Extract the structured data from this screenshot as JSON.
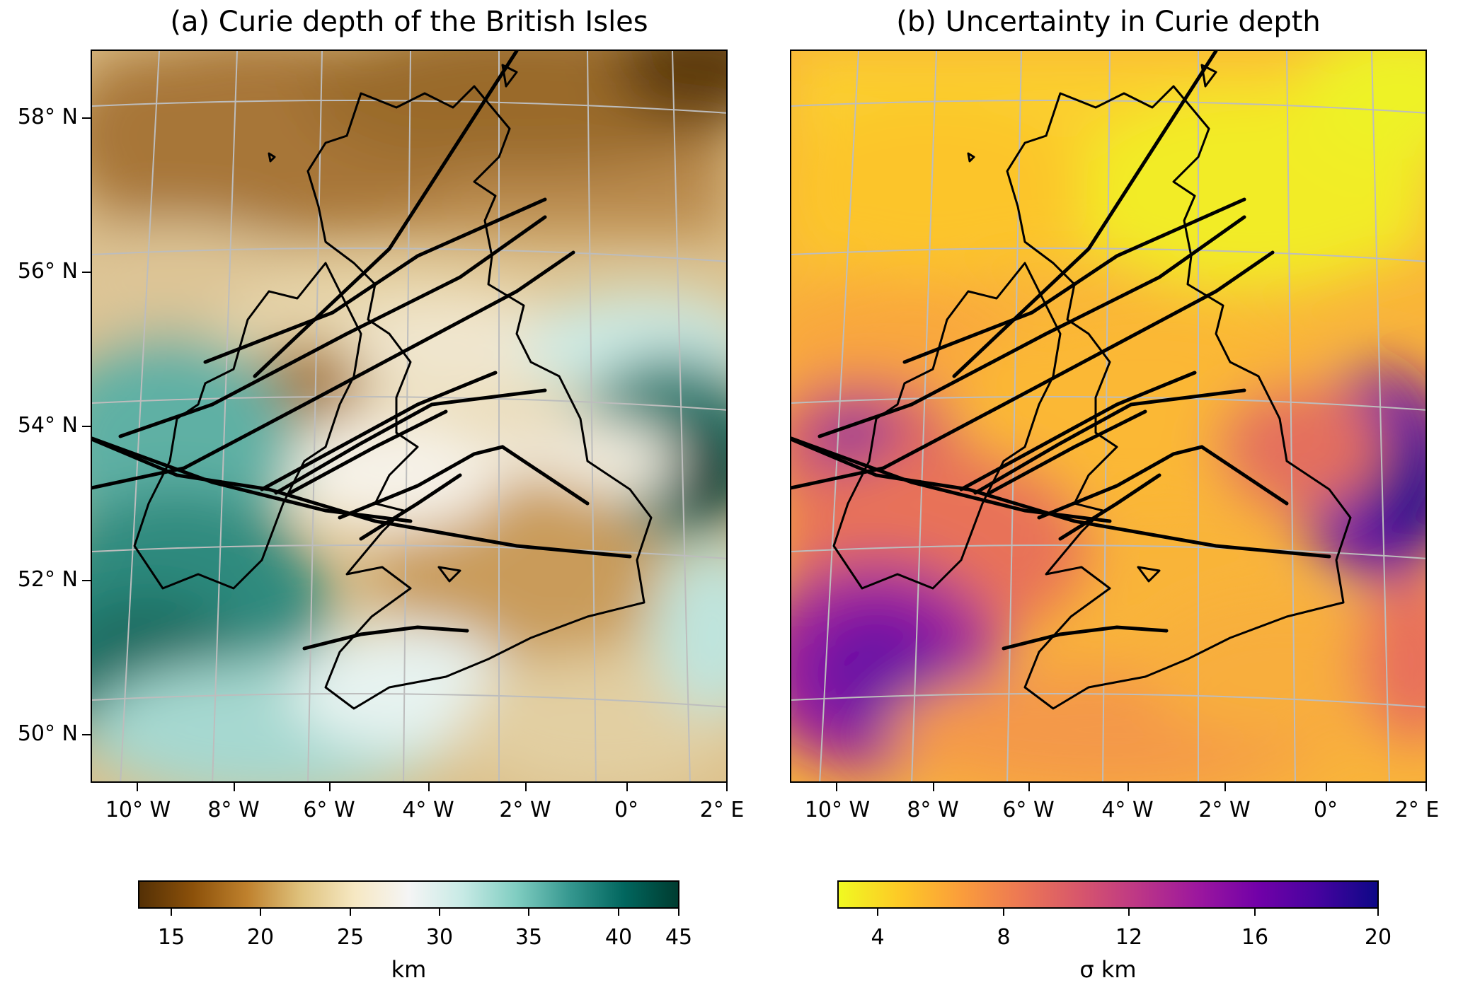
{
  "panels": [
    {
      "title": "(a) Curie depth of the British Isles",
      "lat_labels": [
        "58° N",
        "56° N",
        "54° N",
        "52° N",
        "50° N"
      ],
      "lon_labels": [
        "10° W",
        "8° W",
        "6° W",
        "4° W",
        "2° W",
        "0°",
        "2° E"
      ],
      "colorbar": {
        "colormap": "BrBG",
        "colors": [
          "#543005",
          "#8c510a",
          "#bf812d",
          "#dfc27d",
          "#f6e8c3",
          "#f5f5f5",
          "#c7eae5",
          "#80cdc1",
          "#35978f",
          "#01665e",
          "#003c30"
        ],
        "ticks": [
          "15",
          "20",
          "25",
          "30",
          "35",
          "40",
          "45"
        ],
        "label": "km"
      }
    },
    {
      "title": "(b) Uncertainty in Curie depth",
      "lat_labels": [],
      "lon_labels": [
        "10° W",
        "8° W",
        "6° W",
        "4° W",
        "2° W",
        "0°",
        "2° E"
      ],
      "colorbar": {
        "colormap": "plasma_r",
        "colors": [
          "#f0f921",
          "#fdca26",
          "#fb9f3a",
          "#ed7953",
          "#d8576b",
          "#bd3786",
          "#9c179e",
          "#7201a8",
          "#46039f",
          "#0d0887"
        ],
        "ticks": [
          "4",
          "8",
          "12",
          "16",
          "20"
        ],
        "label": "σ km"
      }
    }
  ]
}
